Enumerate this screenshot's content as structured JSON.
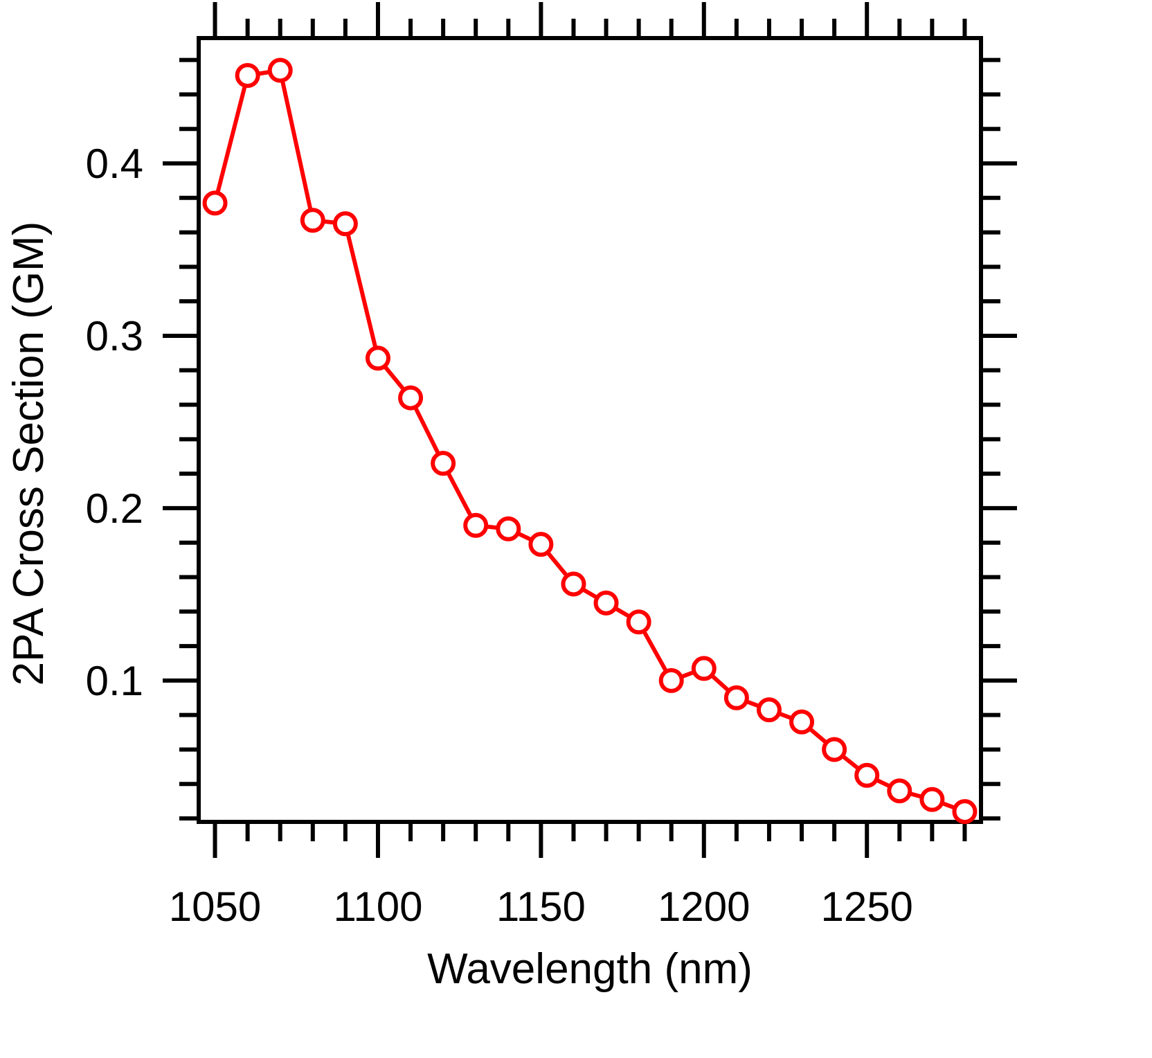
{
  "chart_data": {
    "type": "line",
    "title": "",
    "xlabel": "Wavelength (nm)",
    "ylabel": "2PA Cross Section (GM)",
    "xlim": [
      1045,
      1285
    ],
    "ylim": [
      0.018,
      0.4727
    ],
    "x_ticks": [
      1050,
      1100,
      1150,
      1200,
      1250
    ],
    "x_tick_labels": [
      "1050",
      "1100",
      "1150",
      "1200",
      "1250"
    ],
    "y_ticks": [
      0.1,
      0.2,
      0.3,
      0.4
    ],
    "y_tick_labels": [
      "0.1",
      "0.2",
      "0.3",
      "0.4"
    ],
    "grid": false,
    "legend": "none",
    "series": [
      {
        "color": "#ff0000",
        "marker": "open-circle",
        "x": [
          1050,
          1060,
          1070,
          1080,
          1090,
          1100,
          1110,
          1120,
          1130,
          1140,
          1150,
          1160,
          1170,
          1180,
          1190,
          1200,
          1210,
          1220,
          1230,
          1240,
          1250,
          1260,
          1270,
          1280
        ],
        "y": [
          0.377,
          0.451,
          0.454,
          0.367,
          0.365,
          0.287,
          0.264,
          0.226,
          0.19,
          0.188,
          0.179,
          0.156,
          0.145,
          0.134,
          0.1,
          0.107,
          0.09,
          0.083,
          0.076,
          0.06,
          0.045,
          0.036,
          0.031,
          0.024
        ]
      }
    ]
  }
}
